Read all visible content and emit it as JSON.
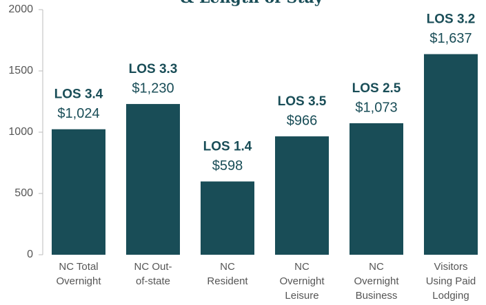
{
  "chart_data": {
    "type": "bar",
    "title": "& Length of Stay",
    "categories": [
      "NC Total\nOvernight",
      "NC Out-\nof-state",
      "NC\nResident",
      "NC\nOvernight\nLeisure",
      "NC\nOvernight\nBusiness",
      "Visitors\nUsing Paid\nLodging"
    ],
    "values": [
      1024,
      1230,
      598,
      966,
      1073,
      1637
    ],
    "value_labels": [
      "$1,024",
      "$1,230",
      "$598",
      "$966",
      "$1,073",
      "$1,637"
    ],
    "annotations": [
      "LOS 3.4",
      "LOS 3.3",
      "LOS 1.4",
      "LOS 3.5",
      "LOS 2.5",
      "LOS 3.2"
    ],
    "color": "#194d57",
    "ylim": [
      0,
      2000
    ],
    "yticks": [
      0,
      500,
      1000,
      1500,
      2000
    ],
    "grid": false
  }
}
